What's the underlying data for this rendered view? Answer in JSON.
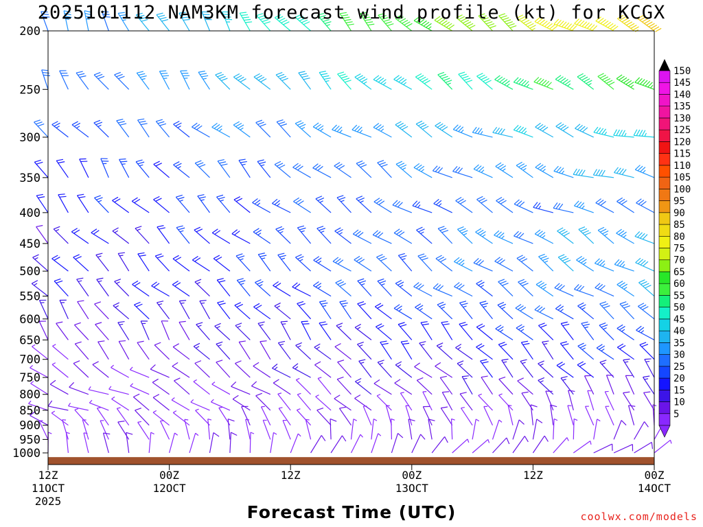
{
  "chart_data": {
    "type": "wind_barb_time_height",
    "title": "2025101112 NAM3KM forecast wind profile (kt) for KCGX",
    "xlabel": "Forecast Time (UTC)",
    "credit": "coolwx.com/models",
    "x_ticks": [
      {
        "hour": 0,
        "label": "12Z",
        "sub": "11OCT",
        "sub2": "2025"
      },
      {
        "hour": 12,
        "label": "00Z",
        "sub": "12OCT",
        "sub2": ""
      },
      {
        "hour": 24,
        "label": "12Z",
        "sub": "",
        "sub2": ""
      },
      {
        "hour": 36,
        "label": "00Z",
        "sub": "13OCT",
        "sub2": ""
      },
      {
        "hour": 48,
        "label": "12Z",
        "sub": "",
        "sub2": ""
      },
      {
        "hour": 60,
        "label": "00Z",
        "sub": "14OCT",
        "sub2": ""
      }
    ],
    "x_range_hours": [
      0,
      60
    ],
    "y_ticks": [
      200,
      250,
      300,
      350,
      400,
      450,
      500,
      550,
      600,
      650,
      700,
      750,
      800,
      850,
      900,
      950,
      1000
    ],
    "y_range_hpa": [
      200,
      1000
    ],
    "y_scale": "log-pressure (hPa)",
    "surface_pressure_hpa": 990,
    "colorbar": {
      "unit": "kt",
      "levels": [
        5,
        10,
        15,
        20,
        25,
        30,
        35,
        40,
        45,
        50,
        55,
        60,
        65,
        70,
        75,
        80,
        85,
        90,
        95,
        100,
        105,
        110,
        115,
        120,
        125,
        130,
        135,
        140,
        145,
        150
      ],
      "colors": [
        "#8a28ff",
        "#6a14e8",
        "#3c14e8",
        "#1414ff",
        "#1446ff",
        "#1e6eff",
        "#1e96ff",
        "#1eb4f0",
        "#14d2e6",
        "#14f0c8",
        "#14f07a",
        "#3cf03c",
        "#28e628",
        "#8cf014",
        "#d2f014",
        "#f0f014",
        "#f0dc14",
        "#f0c814",
        "#f09614",
        "#f07814",
        "#f06414",
        "#ff5000",
        "#ff3214",
        "#f01414",
        "#f01446",
        "#f01478",
        "#f014a0",
        "#f014c8",
        "#f014e6",
        "#dc14f0"
      ]
    },
    "wind_profile": [
      {
        "p": 200,
        "dir_start": 340,
        "dir_end": 295,
        "speed_start": 28,
        "speed_end": 85
      },
      {
        "p": 250,
        "dir_start": 330,
        "dir_end": 295,
        "speed_start": 28,
        "speed_end": 62
      },
      {
        "p": 300,
        "dir_start": 320,
        "dir_end": 285,
        "speed_start": 25,
        "speed_end": 45
      },
      {
        "p": 350,
        "dir_start": 330,
        "dir_end": 285,
        "speed_start": 22,
        "speed_end": 38
      },
      {
        "p": 400,
        "dir_start": 320,
        "dir_end": 290,
        "speed_start": 20,
        "speed_end": 32
      },
      {
        "p": 450,
        "dir_start": 315,
        "dir_end": 300,
        "speed_start": 14,
        "speed_end": 40
      },
      {
        "p": 500,
        "dir_start": 320,
        "dir_end": 300,
        "speed_start": 15,
        "speed_end": 38
      },
      {
        "p": 550,
        "dir_start": 315,
        "dir_end": 300,
        "speed_start": 15,
        "speed_end": 35
      },
      {
        "p": 600,
        "dir_start": 325,
        "dir_end": 305,
        "speed_start": 12,
        "speed_end": 30
      },
      {
        "p": 650,
        "dir_start": 330,
        "dir_end": 310,
        "speed_start": 10,
        "speed_end": 25
      },
      {
        "p": 700,
        "dir_start": 320,
        "dir_end": 315,
        "speed_start": 8,
        "speed_end": 22
      },
      {
        "p": 750,
        "dir_start": 300,
        "dir_end": 320,
        "speed_start": 7,
        "speed_end": 18
      },
      {
        "p": 800,
        "dir_start": 290,
        "dir_end": 330,
        "speed_start": 7,
        "speed_end": 12
      },
      {
        "p": 850,
        "dir_start": 290,
        "dir_end": 340,
        "speed_start": 6,
        "speed_end": 8
      },
      {
        "p": 900,
        "dir_start": 310,
        "dir_end": 350,
        "speed_start": 5,
        "speed_end": 6
      },
      {
        "p": 950,
        "dir_start": 330,
        "dir_end": 20,
        "speed_start": 5,
        "speed_end": 7
      },
      {
        "p": 1000,
        "dir_start": 350,
        "dir_end": 60,
        "speed_start": 5,
        "speed_end": 9
      }
    ]
  }
}
